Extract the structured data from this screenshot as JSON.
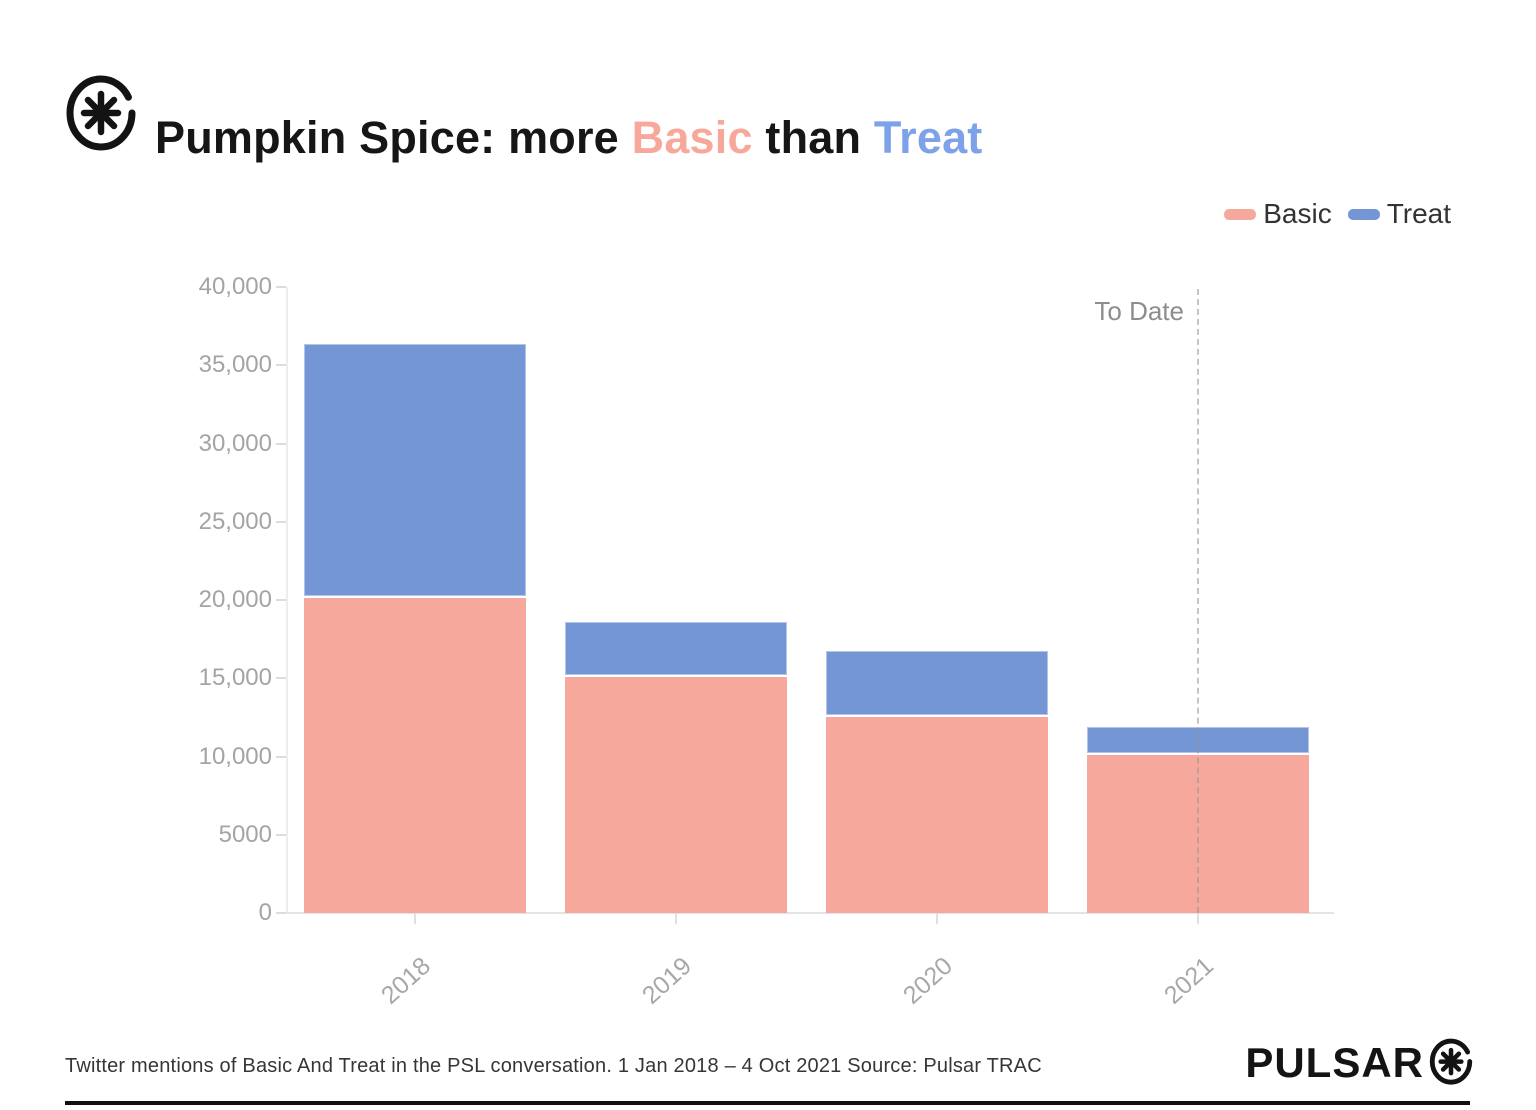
{
  "header": {
    "title_parts": [
      {
        "text": "Pumpkin Spice: more ",
        "color": "#161616"
      },
      {
        "text": "Basic",
        "color": "#F8A89B"
      },
      {
        "text": " than ",
        "color": "#161616"
      },
      {
        "text": "Treat",
        "color": "#7DA2E8"
      }
    ]
  },
  "legend": [
    {
      "label": "Basic",
      "color": "#F5A89B"
    },
    {
      "label": "Treat",
      "color": "#7496D5"
    }
  ],
  "chart_data": {
    "type": "bar",
    "stacked": true,
    "categories": [
      "2018",
      "2019",
      "2020",
      "2021"
    ],
    "series": [
      {
        "name": "Basic",
        "color": "#F5A89B",
        "values": [
          20100,
          15100,
          12500,
          10100
        ]
      },
      {
        "name": "Treat",
        "color": "#7496D5",
        "values": [
          16200,
          3500,
          4200,
          1800
        ]
      }
    ],
    "totals": [
      36300,
      18600,
      16700,
      11900
    ],
    "ylim": [
      0,
      40000
    ],
    "ytick_step": 5000,
    "ytick_labels": [
      "0",
      "5000",
      "10,000",
      "15,000",
      "20,000",
      "25,000",
      "30,000",
      "35,000",
      "40,000"
    ],
    "xlabel": "",
    "ylabel": "",
    "grid": false,
    "legend_position": "top-right",
    "annotation": {
      "label": "To Date",
      "category": "2021",
      "style": "dashed-vertical-line"
    }
  },
  "footer": {
    "caption": "Twitter mentions of Basic And Treat in the PSL conversation. 1 Jan 2018 – 4 Oct 2021 Source: Pulsar TRAC",
    "brand": "PULSAR"
  },
  "colors": {
    "axis_text": "#A4A4A4",
    "annotation_text": "#8D8D8D",
    "legend_text": "#333333",
    "separator": "#ffffff"
  }
}
